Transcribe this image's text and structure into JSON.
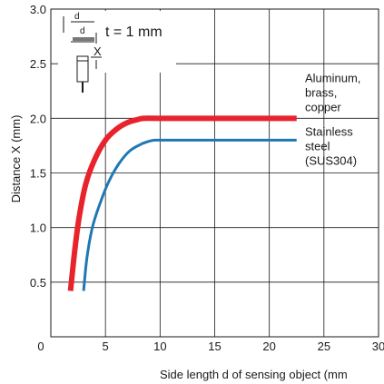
{
  "chart_data": {
    "type": "line",
    "xlabel": "Side length d of sensing object (mm",
    "ylabel": "Distance X (mm)",
    "xlim": [
      0,
      30
    ],
    "ylim": [
      0,
      3.0
    ],
    "x_ticks": [
      "0",
      "5",
      "10",
      "15",
      "20",
      "25",
      "30"
    ],
    "y_ticks": [
      "0.5",
      "1.0",
      "1.5",
      "2.0",
      "2.5",
      "3.0"
    ],
    "grid": true,
    "series": [
      {
        "name": "Aluminum, brass, copper",
        "name_lines": [
          "Aluminum,",
          "brass,",
          "copper"
        ],
        "color": "#e8232b",
        "x": [
          1.8,
          2.2,
          2.6,
          3.2,
          4.0,
          5.0,
          6.0,
          7.0,
          8.0,
          8.5,
          10,
          15,
          20,
          22.5
        ],
        "y": [
          0.42,
          0.8,
          1.1,
          1.4,
          1.62,
          1.8,
          1.9,
          1.96,
          1.99,
          2.0,
          2.0,
          2.0,
          2.0,
          2.0
        ]
      },
      {
        "name": "Stainless steel (SUS304)",
        "name_lines": [
          "Stainless",
          "steel",
          "(SUS304)"
        ],
        "color": "#1f78b4",
        "x": [
          3.0,
          3.3,
          3.8,
          4.5,
          5.3,
          6.2,
          7.2,
          8.2,
          9.0,
          9.5,
          10,
          15,
          20,
          22.5
        ],
        "y": [
          0.42,
          0.72,
          1.0,
          1.22,
          1.42,
          1.58,
          1.7,
          1.76,
          1.79,
          1.8,
          1.8,
          1.8,
          1.8,
          1.8
        ]
      }
    ],
    "inset": {
      "d_label": "d",
      "x_label": "X",
      "t_label": "t = 1 mm"
    }
  }
}
